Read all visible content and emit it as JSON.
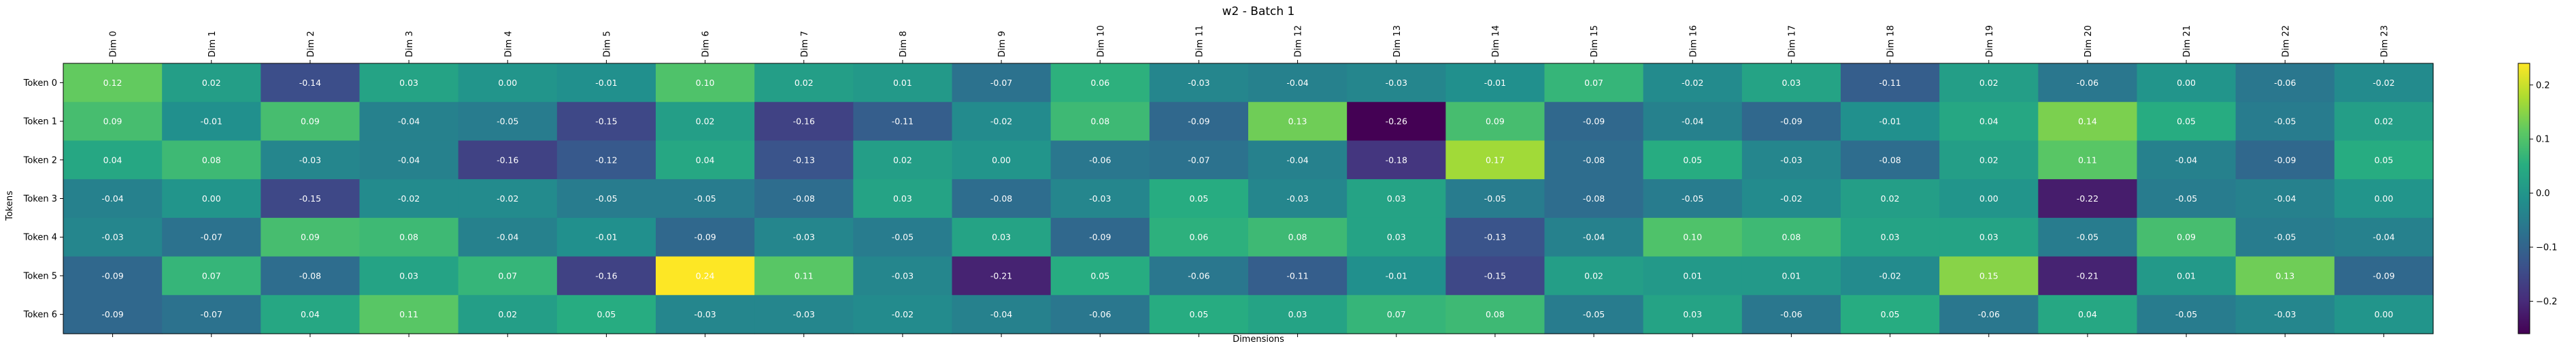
{
  "chart_data": {
    "type": "heatmap",
    "title": "w2 - Batch 1",
    "xlabel": "Dimensions",
    "ylabel": "Tokens",
    "x_categories": [
      "Dim 0",
      "Dim 1",
      "Dim 2",
      "Dim 3",
      "Dim 4",
      "Dim 5",
      "Dim 6",
      "Dim 7",
      "Dim 8",
      "Dim 9",
      "Dim 10",
      "Dim 11",
      "Dim 12",
      "Dim 13",
      "Dim 14",
      "Dim 15",
      "Dim 16",
      "Dim 17",
      "Dim 18",
      "Dim 19",
      "Dim 20",
      "Dim 21",
      "Dim 22",
      "Dim 23"
    ],
    "y_categories": [
      "Token 0",
      "Token 1",
      "Token 2",
      "Token 3",
      "Token 4",
      "Token 5",
      "Token 6"
    ],
    "values": [
      [
        0.12,
        0.02,
        -0.14,
        0.03,
        -0.0,
        -0.01,
        0.1,
        0.02,
        0.01,
        -0.07,
        0.06,
        -0.03,
        -0.04,
        -0.03,
        -0.01,
        0.07,
        -0.02,
        0.03,
        -0.11,
        0.02,
        -0.06,
        0.0,
        -0.06,
        -0.02
      ],
      [
        0.09,
        -0.01,
        0.09,
        -0.04,
        -0.05,
        -0.15,
        0.02,
        -0.16,
        -0.11,
        -0.02,
        0.08,
        -0.09,
        0.13,
        -0.26,
        0.09,
        -0.09,
        -0.04,
        -0.09,
        -0.01,
        0.04,
        0.14,
        0.05,
        -0.05,
        0.02
      ],
      [
        0.04,
        0.08,
        -0.03,
        -0.04,
        -0.16,
        -0.12,
        0.04,
        -0.13,
        0.02,
        -0.0,
        -0.06,
        -0.07,
        -0.04,
        -0.18,
        0.17,
        -0.08,
        0.05,
        -0.03,
        -0.08,
        0.02,
        0.11,
        -0.04,
        -0.09,
        0.05
      ],
      [
        -0.04,
        -0.0,
        -0.15,
        -0.02,
        -0.02,
        -0.05,
        -0.05,
        -0.08,
        0.03,
        -0.08,
        -0.03,
        0.05,
        -0.03,
        0.03,
        -0.05,
        -0.08,
        -0.05,
        -0.02,
        0.02,
        0.0,
        -0.22,
        -0.05,
        -0.04,
        0.0
      ],
      [
        -0.03,
        -0.07,
        0.09,
        0.08,
        -0.04,
        -0.01,
        -0.09,
        -0.03,
        -0.05,
        0.03,
        -0.09,
        0.06,
        0.08,
        0.03,
        -0.13,
        -0.04,
        0.1,
        0.08,
        0.03,
        0.03,
        -0.05,
        0.09,
        -0.05,
        -0.04
      ],
      [
        -0.09,
        0.07,
        -0.08,
        0.03,
        0.07,
        -0.16,
        0.24,
        0.11,
        -0.03,
        -0.21,
        0.05,
        -0.06,
        -0.11,
        -0.01,
        -0.15,
        0.02,
        0.01,
        0.01,
        -0.02,
        0.15,
        -0.21,
        0.01,
        0.13,
        -0.09
      ],
      [
        -0.09,
        -0.07,
        0.04,
        0.11,
        0.02,
        0.05,
        -0.03,
        -0.03,
        -0.02,
        -0.04,
        -0.06,
        0.05,
        0.03,
        0.07,
        0.08,
        -0.05,
        0.03,
        -0.06,
        0.05,
        -0.06,
        0.04,
        -0.05,
        -0.03,
        0.0
      ]
    ],
    "color_range": [
      -0.26,
      0.24
    ],
    "colormap": "viridis",
    "colorbar_ticks": [
      0.2,
      0.1,
      0.0,
      -0.1,
      -0.2
    ],
    "colorbar_tick_labels": [
      "0.2",
      "0.1",
      "0.0",
      "−0.1",
      "−0.2"
    ],
    "grid": false
  }
}
